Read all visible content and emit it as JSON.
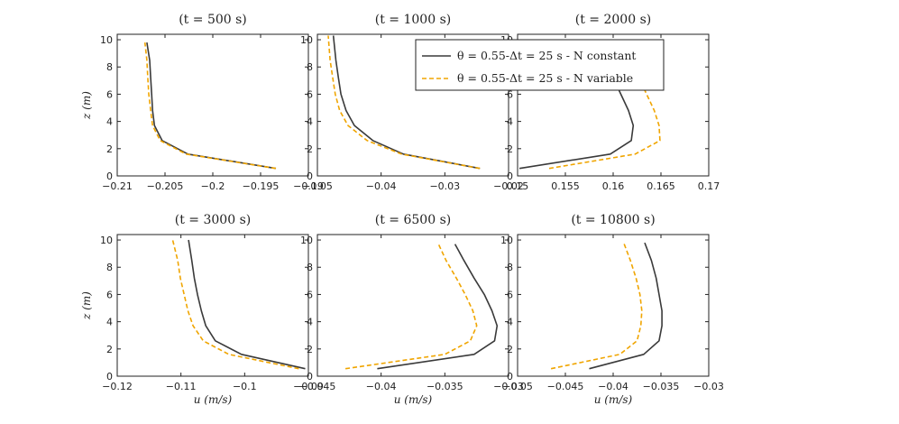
{
  "chart_data": [
    {
      "type": "line",
      "title": "(t = 500 s)",
      "xlabel": "",
      "ylabel": "z (m)",
      "xlim": [
        -0.21,
        -0.19
      ],
      "ylim": [
        0,
        10.4
      ],
      "xticks": [
        -0.21,
        -0.205,
        -0.2,
        -0.195,
        -0.19
      ],
      "xtick_labels": [
        "−0.21",
        "−0.205",
        "−0.2",
        "−0.195",
        "−0.19"
      ],
      "yticks": [
        0,
        2,
        4,
        6,
        8,
        10
      ],
      "ytick_labels": [
        "0",
        "2",
        "4",
        "6",
        "8",
        "10"
      ],
      "series": [
        {
          "name": "θ = 0.55-Δt = 25 s - N constant",
          "color": "#3a3a3a",
          "dash": "solid",
          "x": [
            -0.1934,
            -0.2026,
            -0.2053,
            -0.2061,
            -0.2063,
            -0.2064,
            -0.2065,
            -0.2066,
            -0.2069
          ],
          "y": [
            0.55,
            1.6,
            2.6,
            3.7,
            4.8,
            6.0,
            7.2,
            8.5,
            9.8
          ]
        },
        {
          "name": "θ = 0.55-Δt = 25 s - N variable",
          "color": "#f0a500",
          "dash": "dashed",
          "x": [
            -0.1934,
            -0.2028,
            -0.2055,
            -0.2063,
            -0.2065,
            -0.2067,
            -0.2068,
            -0.2069,
            -0.2071
          ],
          "y": [
            0.55,
            1.6,
            2.6,
            3.7,
            4.8,
            6.0,
            7.2,
            8.5,
            9.8
          ]
        }
      ]
    },
    {
      "type": "line",
      "title": "(t = 1000 s)",
      "xlabel": "",
      "ylabel": "",
      "xlim": [
        -0.05,
        -0.02
      ],
      "ylim": [
        0,
        10.4
      ],
      "xticks": [
        -0.05,
        -0.04,
        -0.03,
        -0.02
      ],
      "xtick_labels": [
        "−0.05",
        "−0.04",
        "−0.03",
        "−0.02"
      ],
      "yticks": [
        0,
        2,
        4,
        6,
        8,
        10
      ],
      "ytick_labels": [
        "0",
        "2",
        "4",
        "6",
        "8",
        "10"
      ],
      "series": [
        {
          "name": "θ = 0.55-Δt = 25 s - N constant",
          "color": "#3a3a3a",
          "dash": "solid",
          "x": [
            -0.0245,
            -0.0365,
            -0.0413,
            -0.0442,
            -0.0455,
            -0.0463,
            -0.0467,
            -0.0471,
            -0.0475
          ],
          "y": [
            0.55,
            1.6,
            2.6,
            3.7,
            4.8,
            6.0,
            7.2,
            8.5,
            10.3
          ]
        },
        {
          "name": "θ = 0.55-Δt = 25 s - N variable",
          "color": "#f0a500",
          "dash": "dashed",
          "x": [
            -0.0245,
            -0.0368,
            -0.0422,
            -0.0452,
            -0.0465,
            -0.0472,
            -0.0476,
            -0.048,
            -0.0483
          ],
          "y": [
            0.55,
            1.6,
            2.6,
            3.7,
            4.8,
            6.0,
            7.2,
            8.5,
            10.3
          ]
        }
      ]
    },
    {
      "type": "line",
      "title": "(t = 2000 s)",
      "xlabel": "",
      "ylabel": "",
      "xlim": [
        0.15,
        0.17
      ],
      "ylim": [
        0,
        10.4
      ],
      "xticks": [
        0.15,
        0.155,
        0.16,
        0.165,
        0.17
      ],
      "xtick_labels": [
        "0.15",
        "0.155",
        "0.16",
        "0.165",
        "0.17"
      ],
      "yticks": [
        0,
        2,
        4,
        6,
        8,
        10
      ],
      "ytick_labels": [
        "0",
        "2",
        "4",
        "6",
        "8",
        "10"
      ],
      "series": [
        {
          "name": "θ = 0.55-Δt = 25 s - N constant",
          "color": "#3a3a3a",
          "dash": "solid",
          "x": [
            0.1502,
            0.1597,
            0.1619,
            0.1621,
            0.1616,
            0.1608,
            0.16,
            0.1592,
            0.1588
          ],
          "y": [
            0.55,
            1.6,
            2.6,
            3.7,
            4.8,
            6.0,
            7.2,
            8.5,
            9.8
          ]
        },
        {
          "name": "θ = 0.55-Δt = 25 s - N variable",
          "color": "#f0a500",
          "dash": "dashed",
          "x": [
            0.1533,
            0.1623,
            0.1649,
            0.1648,
            0.1643,
            0.1635,
            0.1627,
            0.1619,
            0.1614
          ],
          "y": [
            0.55,
            1.6,
            2.6,
            3.7,
            4.8,
            6.0,
            7.2,
            8.5,
            9.8
          ]
        }
      ]
    },
    {
      "type": "line",
      "title": "(t = 3000 s)",
      "xlabel": "u (m/s)",
      "ylabel": "z (m)",
      "xlim": [
        -0.12,
        -0.09
      ],
      "ylim": [
        0,
        10.4
      ],
      "xticks": [
        -0.12,
        -0.11,
        -0.1,
        -0.09
      ],
      "xtick_labels": [
        "−0.12",
        "−0.11",
        "−0.1",
        "−0.09"
      ],
      "yticks": [
        0,
        2,
        4,
        6,
        8,
        10
      ],
      "ytick_labels": [
        "0",
        "2",
        "4",
        "6",
        "8",
        "10"
      ],
      "series": [
        {
          "name": "θ = 0.55-Δt = 25 s - N constant",
          "color": "#3a3a3a",
          "dash": "solid",
          "x": [
            -0.0905,
            -0.1005,
            -0.1046,
            -0.1061,
            -0.1068,
            -0.1074,
            -0.1079,
            -0.1083,
            -0.1088
          ],
          "y": [
            0.55,
            1.6,
            2.6,
            3.7,
            4.8,
            6.0,
            7.2,
            8.5,
            10.0
          ]
        },
        {
          "name": "θ = 0.55-Δt = 25 s - N variable",
          "color": "#f0a500",
          "dash": "dashed",
          "x": [
            -0.0915,
            -0.1025,
            -0.1065,
            -0.1081,
            -0.1089,
            -0.1095,
            -0.1101,
            -0.1105,
            -0.1113
          ],
          "y": [
            0.55,
            1.6,
            2.6,
            3.7,
            4.8,
            6.0,
            7.2,
            8.5,
            10.0
          ]
        }
      ]
    },
    {
      "type": "line",
      "title": "(t = 6500 s)",
      "xlabel": "u (m/s)",
      "ylabel": "",
      "xlim": [
        -0.045,
        -0.03
      ],
      "ylim": [
        0,
        10.4
      ],
      "xticks": [
        -0.045,
        -0.04,
        -0.035,
        -0.03
      ],
      "xtick_labels": [
        "−0.045",
        "−0.04",
        "−0.035",
        "−0.03"
      ],
      "yticks": [
        0,
        2,
        4,
        6,
        8,
        10
      ],
      "ytick_labels": [
        "0",
        "2",
        "4",
        "6",
        "8",
        "10"
      ],
      "series": [
        {
          "name": "θ = 0.55-Δt = 25 s - N constant",
          "color": "#3a3a3a",
          "dash": "solid",
          "x": [
            -0.0403,
            -0.0327,
            -0.0311,
            -0.0309,
            -0.0313,
            -0.0319,
            -0.0327,
            -0.0335,
            -0.0342
          ],
          "y": [
            0.55,
            1.6,
            2.6,
            3.7,
            4.8,
            6.0,
            7.2,
            8.5,
            9.7
          ]
        },
        {
          "name": "θ = 0.55-Δt = 25 s - N variable",
          "color": "#f0a500",
          "dash": "dashed",
          "x": [
            -0.0428,
            -0.035,
            -0.033,
            -0.0325,
            -0.0328,
            -0.0334,
            -0.0341,
            -0.0349,
            -0.0355
          ],
          "y": [
            0.55,
            1.6,
            2.6,
            3.7,
            4.8,
            6.0,
            7.2,
            8.5,
            9.7
          ]
        }
      ]
    },
    {
      "type": "line",
      "title": "(t = 10800 s)",
      "xlabel": "u (m/s)",
      "ylabel": "",
      "xlim": [
        -0.05,
        -0.03
      ],
      "ylim": [
        0,
        10.4
      ],
      "xticks": [
        -0.05,
        -0.045,
        -0.04,
        -0.035,
        -0.03
      ],
      "xtick_labels": [
        "−0.05",
        "−0.045",
        "−0.04",
        "−0.035",
        "−0.03"
      ],
      "yticks": [
        0,
        2,
        4,
        6,
        8,
        10
      ],
      "ytick_labels": [
        "0",
        "2",
        "4",
        "6",
        "8",
        "10"
      ],
      "series": [
        {
          "name": "θ = 0.55-Δt = 25 s - N constant",
          "color": "#3a3a3a",
          "dash": "solid",
          "x": [
            -0.0425,
            -0.0368,
            -0.0352,
            -0.0349,
            -0.0349,
            -0.0352,
            -0.0355,
            -0.036,
            -0.0367
          ],
          "y": [
            0.55,
            1.6,
            2.6,
            3.7,
            4.8,
            6.0,
            7.2,
            8.5,
            9.8
          ]
        },
        {
          "name": "θ = 0.55-Δt = 25 s - N variable",
          "color": "#f0a500",
          "dash": "dashed",
          "x": [
            -0.0465,
            -0.0393,
            -0.0375,
            -0.0371,
            -0.037,
            -0.0372,
            -0.0376,
            -0.0382,
            -0.0389
          ],
          "y": [
            0.55,
            1.6,
            2.6,
            3.7,
            4.8,
            6.0,
            7.2,
            8.5,
            9.8
          ]
        }
      ]
    }
  ],
  "legend": {
    "location": "top-center",
    "entries": [
      {
        "label": "θ = 0.55-Δt = 25 s - N constant",
        "color": "#3a3a3a",
        "dash": "solid"
      },
      {
        "label": "θ = 0.55-Δt = 25 s - N variable",
        "color": "#f0a500",
        "dash": "dashed"
      }
    ]
  }
}
